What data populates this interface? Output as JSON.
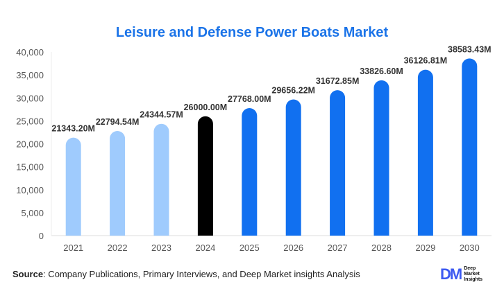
{
  "chart_data": {
    "type": "bar",
    "title": "Leisure and Defense Power Boats Market",
    "categories": [
      "2021",
      "2022",
      "2023",
      "2024",
      "2025",
      "2026",
      "2027",
      "2028",
      "2029",
      "2030"
    ],
    "values": [
      21343.2,
      22794.54,
      24344.57,
      26000.0,
      27768.0,
      29656.22,
      31672.85,
      33826.6,
      36126.81,
      38583.43
    ],
    "data_labels": [
      "21343.20M",
      "22794.54M",
      "24344.57M",
      "26000.00M",
      "27768.00M",
      "29656.22M",
      "31672.85M",
      "33826.60M",
      "36126.81M",
      "38583.43M"
    ],
    "bar_colors": [
      "#9fcbfd",
      "#9fcbfd",
      "#9fcbfd",
      "#000000",
      "#1170f0",
      "#1170f0",
      "#1170f0",
      "#1170f0",
      "#1170f0",
      "#1170f0"
    ],
    "ylim": [
      0,
      40000
    ],
    "yticks": [
      "0",
      "5,000",
      "10,000",
      "15,000",
      "20,000",
      "25,000",
      "30,000",
      "35,000",
      "40,000"
    ],
    "grid": false,
    "xlabel": "",
    "ylabel": ""
  },
  "source": {
    "label": "Source",
    "text": ": Company Publications, Primary Interviews, and Deep Market insights Analysis"
  },
  "logo": {
    "mark": "DM",
    "lines": [
      "Deep",
      "Market",
      "Insights"
    ]
  }
}
